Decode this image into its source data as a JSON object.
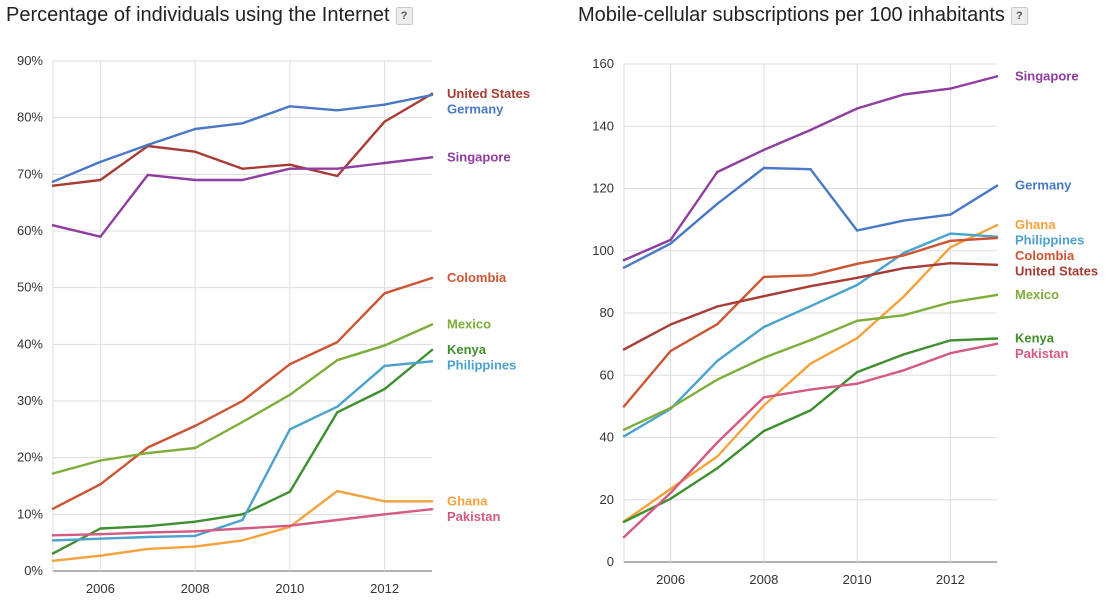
{
  "charts": [
    {
      "title": "Percentage of individuals using the Internet",
      "help_icon": "?",
      "chart_data": {
        "type": "line",
        "title": "Percentage of individuals using the Internet",
        "x": [
          2005,
          2006,
          2007,
          2008,
          2009,
          2010,
          2011,
          2012,
          2013
        ],
        "xticks": [
          2006,
          2008,
          2010,
          2012
        ],
        "yticks": [
          0,
          10,
          20,
          30,
          40,
          50,
          60,
          70,
          80,
          90
        ],
        "ytick_suffix": "%",
        "ylim": [
          0,
          90
        ],
        "grid": true,
        "legend": "right, labels at line ends",
        "series": [
          {
            "name": "United States",
            "color": "#a83c34",
            "values": [
              68,
              69,
              75,
              74,
              71,
              71.7,
              69.7,
              79.3,
              84.2
            ]
          },
          {
            "name": "Germany",
            "color": "#4a78c8",
            "values": [
              68.7,
              72.2,
              75.2,
              78,
              79,
              82,
              81.3,
              82.3,
              84
            ]
          },
          {
            "name": "Singapore",
            "color": "#8e3ea0",
            "values": [
              61,
              59,
              69.9,
              69,
              69,
              71,
              71,
              72,
              73
            ]
          },
          {
            "name": "Colombia",
            "color": "#cc5533",
            "values": [
              11,
              15.3,
              21.8,
              25.6,
              30,
              36.5,
              40.4,
              49,
              51.7
            ]
          },
          {
            "name": "Mexico",
            "color": "#7ead3a",
            "values": [
              17.2,
              19.5,
              20.8,
              21.7,
              26.3,
              31.1,
              37.2,
              39.8,
              43.5
            ]
          },
          {
            "name": "Kenya",
            "color": "#3f8f2e",
            "values": [
              3.1,
              7.5,
              7.9,
              8.7,
              10,
              14,
              28,
              32.1,
              39
            ]
          },
          {
            "name": "Philippines",
            "color": "#4ba2cc",
            "values": [
              5.4,
              5.7,
              6,
              6.2,
              9,
              25,
              29,
              36.2,
              37
            ]
          },
          {
            "name": "Ghana",
            "color": "#f5a23c",
            "values": [
              1.8,
              2.7,
              3.9,
              4.3,
              5.4,
              7.8,
              14.1,
              12.3,
              12.3
            ]
          },
          {
            "name": "Pakistan",
            "color": "#d45a82",
            "values": [
              6.3,
              6.5,
              6.8,
              7,
              7.5,
              8,
              9,
              10,
              10.9
            ]
          }
        ]
      }
    },
    {
      "title": "Mobile-cellular subscriptions per 100 inhabitants",
      "help_icon": "?",
      "chart_data": {
        "type": "line",
        "title": "Mobile-cellular subscriptions per 100 inhabitants",
        "x": [
          2005,
          2006,
          2007,
          2008,
          2009,
          2010,
          2011,
          2012,
          2013
        ],
        "xticks": [
          2006,
          2008,
          2010,
          2012
        ],
        "yticks": [
          0,
          20,
          40,
          60,
          80,
          100,
          120,
          140,
          160
        ],
        "ytick_suffix": "",
        "ylim": [
          0,
          160
        ],
        "grid": true,
        "legend": "right, labels at line ends",
        "series": [
          {
            "name": "Singapore",
            "color": "#8e3ea0",
            "values": [
              97,
              103.5,
              125.3,
              132.4,
              138.8,
              145.7,
              150.2,
              152.1,
              156
            ]
          },
          {
            "name": "Germany",
            "color": "#4a78c8",
            "values": [
              94.6,
              102.3,
              115.1,
              126.6,
              126.2,
              106.5,
              109.7,
              111.6,
              120.9
            ]
          },
          {
            "name": "Ghana",
            "color": "#f5a23c",
            "values": [
              13,
              23.5,
              33.9,
              50.3,
              63.7,
              71.9,
              85.3,
              101.1,
              108.2
            ]
          },
          {
            "name": "Philippines",
            "color": "#4ba2cc",
            "values": [
              40.4,
              49.2,
              64.6,
              75.5,
              82.2,
              89,
              99.3,
              105.5,
              104.5
            ]
          },
          {
            "name": "Colombia",
            "color": "#cc5533",
            "values": [
              50,
              67.8,
              76.4,
              91.6,
              92.1,
              95.8,
              98.5,
              103.2,
              104.1
            ]
          },
          {
            "name": "United States",
            "color": "#a83c34",
            "values": [
              68.3,
              76.3,
              82.1,
              85.4,
              88.6,
              91.3,
              94.4,
              96,
              95.5
            ]
          },
          {
            "name": "Mexico",
            "color": "#7ead3a",
            "values": [
              42.5,
              49.5,
              58.6,
              65.6,
              71.3,
              77.5,
              79.3,
              83.4,
              85.8
            ]
          },
          {
            "name": "Kenya",
            "color": "#3f8f2e",
            "values": [
              12.9,
              20.3,
              30.1,
              42.1,
              48.7,
              61,
              66.7,
              71.2,
              71.8
            ]
          },
          {
            "name": "Pakistan",
            "color": "#d45a82",
            "values": [
              8,
              22.2,
              38.4,
              52.9,
              55.4,
              57.3,
              61.6,
              67.1,
              70.1
            ]
          }
        ]
      }
    }
  ]
}
